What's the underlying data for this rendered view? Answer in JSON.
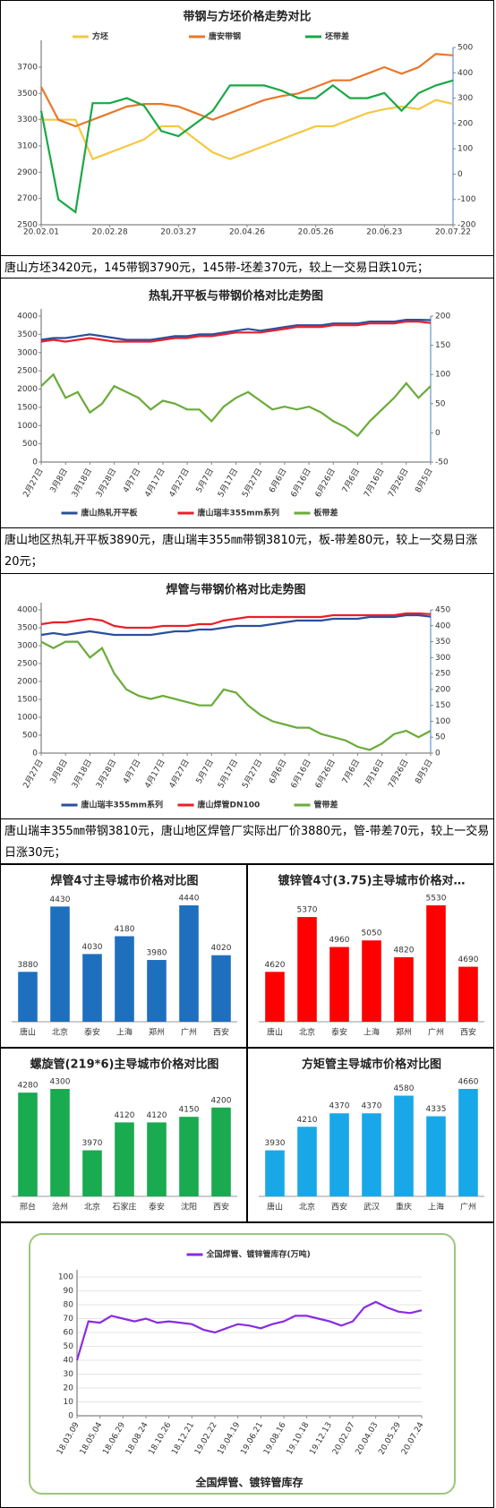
{
  "chart_data": [
    {
      "type": "line",
      "title": "带钢与方坯价格走势对比",
      "categories": [
        "20.02.01",
        null,
        null,
        null,
        "20.02.28",
        null,
        null,
        null,
        "20.03.27",
        null,
        null,
        null,
        "20.04.26",
        null,
        null,
        null,
        "20.05.26",
        null,
        null,
        null,
        "20.06.23",
        null,
        null,
        null,
        "20.07.22"
      ],
      "series": [
        {
          "name": "方坯",
          "color": "#f5c842",
          "values": [
            3300,
            3300,
            3300,
            3000,
            3050,
            3100,
            3150,
            3250,
            3250,
            3150,
            3050,
            3000,
            3050,
            3100,
            3150,
            3200,
            3250,
            3250,
            3300,
            3350,
            3380,
            3400,
            3380,
            3450,
            3420
          ]
        },
        {
          "name": "唐安带钢",
          "color": "#e8782a",
          "values": [
            3550,
            3300,
            3250,
            3300,
            3350,
            3400,
            3420,
            3420,
            3400,
            3350,
            3300,
            3350,
            3400,
            3450,
            3480,
            3500,
            3550,
            3600,
            3600,
            3650,
            3700,
            3650,
            3700,
            3800,
            3790
          ]
        },
        {
          "name": "坯带差",
          "color": "#1aa845",
          "axis": "y2",
          "values": [
            250,
            -100,
            -150,
            280,
            280,
            300,
            270,
            170,
            150,
            200,
            250,
            350,
            350,
            350,
            330,
            300,
            300,
            350,
            300,
            300,
            320,
            250,
            320,
            350,
            370
          ]
        }
      ],
      "ylim": [
        2500,
        3850
      ],
      "yticks": [
        2500,
        2700,
        2900,
        3100,
        3300,
        3500,
        3700
      ],
      "y2lim": [
        -200,
        500
      ],
      "y2ticks": [
        -200,
        -100,
        0,
        100,
        200,
        300,
        400,
        500
      ],
      "legend": "top",
      "grid": false
    },
    {
      "type": "line",
      "title": "热轧开平板与带钢价格对比走势图",
      "categories": [
        "2月27日",
        null,
        "3月8日",
        null,
        "3月18日",
        null,
        "3月28日",
        null,
        "4月7日",
        null,
        "4月17日",
        null,
        "4月27日",
        null,
        "5月7日",
        null,
        "5月17日",
        null,
        "5月27日",
        null,
        "6月6日",
        null,
        "6月16日",
        null,
        "6月26日",
        null,
        "7月6日",
        null,
        "7月16日",
        null,
        "7月26日",
        null,
        "8月5日"
      ],
      "series": [
        {
          "name": "唐山热轧开平板",
          "color": "#2b4f9e",
          "values": [
            3350,
            3400,
            3400,
            3450,
            3500,
            3450,
            3400,
            3350,
            3350,
            3350,
            3400,
            3450,
            3450,
            3500,
            3500,
            3550,
            3600,
            3650,
            3600,
            3650,
            3700,
            3750,
            3750,
            3750,
            3800,
            3800,
            3800,
            3850,
            3850,
            3850,
            3900,
            3900,
            3890
          ]
        },
        {
          "name": "唐山瑞丰355mm系列",
          "color": "#e8202a",
          "values": [
            3300,
            3350,
            3300,
            3350,
            3400,
            3350,
            3300,
            3300,
            3300,
            3300,
            3350,
            3400,
            3400,
            3450,
            3450,
            3500,
            3550,
            3550,
            3550,
            3600,
            3650,
            3700,
            3700,
            3700,
            3750,
            3750,
            3750,
            3800,
            3800,
            3800,
            3850,
            3850,
            3810
          ]
        },
        {
          "name": "板带差",
          "color": "#6aab3a",
          "axis": "y2",
          "values": [
            80,
            100,
            60,
            70,
            35,
            50,
            80,
            70,
            60,
            40,
            55,
            50,
            40,
            40,
            20,
            45,
            60,
            70,
            55,
            40,
            45,
            40,
            45,
            35,
            20,
            10,
            -5,
            20,
            40,
            60,
            85,
            60,
            80
          ]
        }
      ],
      "ylim": [
        0,
        4000
      ],
      "yticks": [
        0,
        500,
        1000,
        1500,
        2000,
        2500,
        3000,
        3500,
        4000
      ],
      "y2lim": [
        -50,
        200
      ],
      "y2ticks": [
        -50,
        0,
        50,
        100,
        150,
        200
      ],
      "legend": "bottom",
      "grid": false
    },
    {
      "type": "line",
      "title": "焊管与带钢价格对比走势图",
      "categories": [
        "2月27日",
        null,
        "3月8日",
        null,
        "3月18日",
        null,
        "3月28日",
        null,
        "4月7日",
        null,
        "4月17日",
        null,
        "4月27日",
        null,
        "5月7日",
        null,
        "5月17日",
        null,
        "5月27日",
        null,
        "6月6日",
        null,
        "6月16日",
        null,
        "6月26日",
        null,
        "7月6日",
        null,
        "7月16日",
        null,
        "7月26日",
        null,
        "8月5日"
      ],
      "series": [
        {
          "name": "唐山瑞丰355mm系列",
          "color": "#2b4f9e",
          "values": [
            3300,
            3350,
            3300,
            3350,
            3400,
            3350,
            3300,
            3300,
            3300,
            3300,
            3350,
            3400,
            3400,
            3450,
            3450,
            3500,
            3550,
            3550,
            3550,
            3600,
            3650,
            3700,
            3700,
            3700,
            3750,
            3750,
            3750,
            3800,
            3800,
            3800,
            3850,
            3850,
            3810
          ]
        },
        {
          "name": "唐山焊管DN100",
          "color": "#e8202a",
          "values": [
            3600,
            3650,
            3650,
            3700,
            3750,
            3700,
            3550,
            3500,
            3500,
            3500,
            3550,
            3550,
            3550,
            3600,
            3600,
            3700,
            3750,
            3800,
            3800,
            3800,
            3800,
            3800,
            3800,
            3800,
            3850,
            3850,
            3850,
            3850,
            3850,
            3850,
            3900,
            3900,
            3880
          ]
        },
        {
          "name": "管带差",
          "color": "#6aab3a",
          "axis": "y2",
          "values": [
            350,
            330,
            350,
            350,
            300,
            330,
            250,
            200,
            180,
            170,
            180,
            170,
            160,
            150,
            150,
            200,
            190,
            150,
            120,
            100,
            90,
            80,
            80,
            60,
            50,
            40,
            20,
            10,
            30,
            60,
            70,
            50,
            70
          ]
        }
      ],
      "ylim": [
        0,
        4000
      ],
      "yticks": [
        0,
        500,
        1000,
        1500,
        2000,
        2500,
        3000,
        3500,
        4000
      ],
      "y2lim": [
        0,
        450
      ],
      "y2ticks": [
        0,
        50,
        100,
        150,
        200,
        250,
        300,
        350,
        400,
        450
      ],
      "legend": "bottom",
      "grid": false
    },
    {
      "type": "bar",
      "title": "焊管4寸主导城市价格对比图",
      "color": "#1f6fbf",
      "categories": [
        "唐山",
        "北京",
        "泰安",
        "上海",
        "郑州",
        "广州",
        "西安"
      ],
      "values": [
        3880,
        4430,
        4030,
        4180,
        3980,
        4440,
        4020
      ]
    },
    {
      "type": "bar",
      "title": "镀锌管4寸(3.75)主导城市价格对…",
      "color": "#ff0000",
      "categories": [
        "唐山",
        "北京",
        "泰安",
        "上海",
        "郑州",
        "广州",
        "西安"
      ],
      "values": [
        4620,
        5370,
        4960,
        5050,
        4820,
        5530,
        4690
      ]
    },
    {
      "type": "bar",
      "title": "螺旋管(219*6)主导城市价格对比图",
      "color": "#1aaa50",
      "categories": [
        "邢台",
        "沧州",
        "北京",
        "石家庄",
        "泰安",
        "沈阳",
        "西安"
      ],
      "values": [
        4280,
        4300,
        3970,
        4120,
        4120,
        4150,
        4200
      ]
    },
    {
      "type": "bar",
      "title": "方矩管主导城市价格对比图",
      "color": "#18a8e8",
      "categories": [
        "唐山",
        "北京",
        "西安",
        "武汉",
        "重庆",
        "上海",
        "广州"
      ],
      "values": [
        3930,
        4210,
        4370,
        4370,
        4580,
        4335,
        4660
      ]
    },
    {
      "type": "line",
      "xlabel": "全国焊管、镀锌管库存",
      "categories": [
        "18.03.09",
        null,
        "18.05.04",
        null,
        "18.06.29",
        null,
        "18.08.24",
        null,
        "18.10.26",
        null,
        "18.12.21",
        null,
        "19.02.22",
        null,
        "19.04.19",
        null,
        "19.06.21",
        null,
        "19.08.16",
        null,
        "19.10.18",
        null,
        "19.12.13",
        null,
        "20.02.07",
        null,
        "20.04.03",
        null,
        "20.05.29",
        null,
        "20.07.24"
      ],
      "series": [
        {
          "name": "全国焊管、镀锌管库存(万吨)",
          "color": "#8a2be2",
          "values": [
            40,
            68,
            67,
            72,
            70,
            68,
            70,
            67,
            68,
            67,
            66,
            62,
            60,
            63,
            66,
            65,
            63,
            66,
            68,
            72,
            72,
            70,
            68,
            65,
            68,
            78,
            82,
            78,
            75,
            74,
            76
          ]
        }
      ],
      "ylim": [
        0,
        100
      ],
      "yticks": [
        0,
        10,
        20,
        30,
        40,
        50,
        60,
        70,
        80,
        90,
        100
      ],
      "legend": "top",
      "grid": true
    }
  ],
  "text_blocks": [
    "唐山方坯3420元，145带钢3790元，145带-坯差370元，较上一交易日跌10元；",
    "唐山地区热轧开平板3890元，唐山瑞丰355㎜带钢3810元，板-带差80元，较上一交易日涨20元；",
    "唐山瑞丰355㎜带钢3810元，唐山地区焊管厂实际出厂价3880元，管-带差70元，较上一交易日涨30元；"
  ]
}
